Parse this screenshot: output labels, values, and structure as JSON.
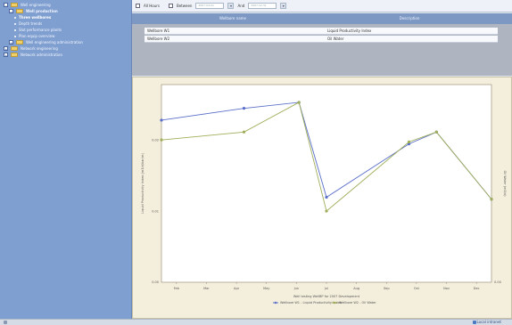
{
  "sidebar": {
    "items": [
      {
        "label": "Well engineering",
        "level": 1,
        "kind": "folder",
        "expander": "–"
      },
      {
        "label": "Well production",
        "level": 2,
        "kind": "folder",
        "expander": "–",
        "bold": true
      },
      {
        "label": "Three wellbores",
        "level": 3,
        "kind": "leaf",
        "selected": true
      },
      {
        "label": "Depth trends",
        "level": 3,
        "kind": "leaf"
      },
      {
        "label": "Slot performance plants",
        "level": 3,
        "kind": "leaf"
      },
      {
        "label": "Plan equip overview",
        "level": 3,
        "kind": "leaf"
      },
      {
        "label": "Well engineering administration",
        "level": 2,
        "kind": "folder",
        "expander": "+"
      },
      {
        "label": "Network engineering",
        "level": 1,
        "kind": "folder",
        "expander": "+"
      },
      {
        "label": "Network administration",
        "level": 1,
        "kind": "folder",
        "expander": "+"
      }
    ]
  },
  "toolbar": {
    "all_hours_label": "All Hours",
    "between_label": "Between",
    "from_value": "2007-04-01",
    "and_label": "And",
    "to_value": "2007-12-31",
    "dropdown_icon": "▾"
  },
  "grid": {
    "columns": [
      "Wellbore name",
      "Description"
    ],
    "rows": [
      {
        "name": "Wellbore W1",
        "description": "Liquid Productivity Index"
      },
      {
        "name": "Wellbore W2",
        "description": "Oil Water"
      }
    ]
  },
  "chart_data": {
    "type": "line",
    "categories": [
      "Feb",
      "Mar",
      "Apr",
      "May",
      "Jun",
      "Jul",
      "Aug",
      "Sep",
      "Oct",
      "Nov",
      "Dec"
    ],
    "series": [
      {
        "name": "Wellbore W1 - Liquid Productivity Index",
        "color": "#5b6fc9",
        "points": [
          [
            0,
            82
          ],
          [
            3,
            88
          ],
          [
            5,
            91
          ],
          [
            6,
            43
          ],
          [
            9,
            70
          ],
          [
            10,
            76
          ],
          [
            12,
            42
          ]
        ]
      },
      {
        "name": "Wellbore W2 - Oil Water",
        "color": "#9fae5a",
        "points": [
          [
            0,
            72
          ],
          [
            3,
            76
          ],
          [
            5,
            91
          ],
          [
            6,
            36
          ],
          [
            9,
            71
          ],
          [
            10,
            76
          ],
          [
            12,
            42
          ]
        ]
      }
    ],
    "y_ticks": [
      "0.00",
      "0.01",
      "0.02"
    ],
    "right_ticks": [
      "0.00"
    ],
    "ylabel": "Liquid Productivity Index (m3/d/bar/m)",
    "y2label": "Oil Water (m3/d)",
    "xlabel": "Well testing WellBP for 2007 Development",
    "legend": [
      "Wellbore W1 - Liquid Productivity Index",
      "Wellbore W2 - Oil Water"
    ],
    "legend_position": "bottom",
    "ylim": [
      0,
      100
    ],
    "grid": false
  },
  "status": {
    "text": "Local intranet"
  }
}
